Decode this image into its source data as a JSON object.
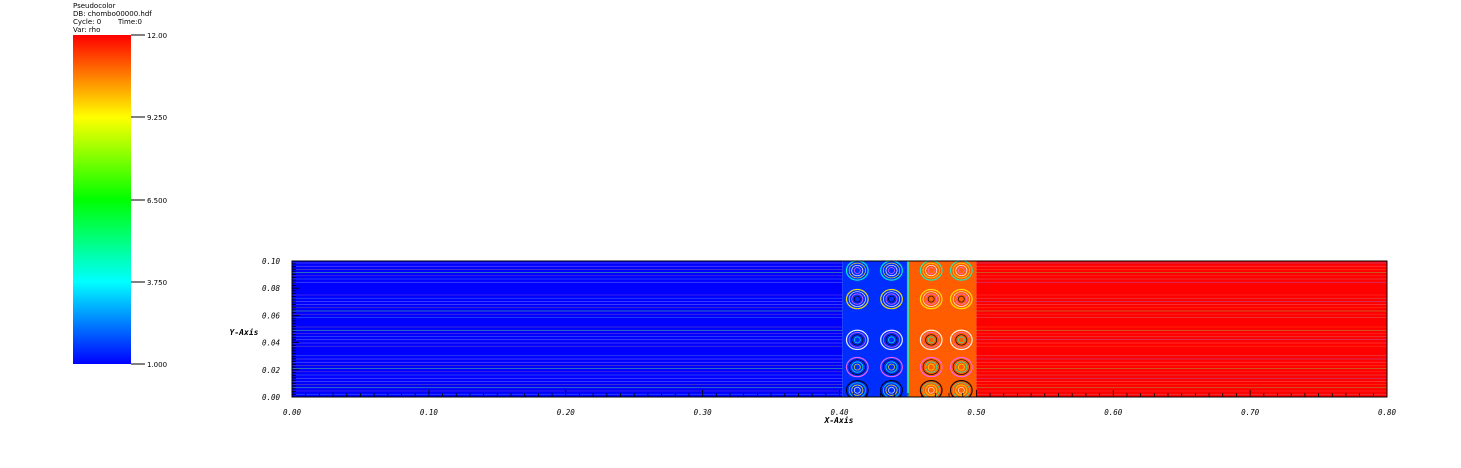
{
  "header": {
    "plot_type": "Pseudocolor",
    "db": "DB: chombo00000.hdf",
    "cycle": "Cycle: 0",
    "time": "Time:0",
    "var": "Var: rho"
  },
  "legend": {
    "min": 1.0,
    "max": 12.0,
    "tick_labels": [
      "12.00",
      "9.250",
      "6.500",
      "3.750",
      "1.000"
    ],
    "colormap": [
      "#0000ff",
      "#00ffff",
      "#00ff00",
      "#ffff00",
      "#ff0000"
    ]
  },
  "chart_data": {
    "type": "heatmap",
    "title": "",
    "xlabel": "X-Axis",
    "ylabel": "Y-Axis",
    "xlim": [
      0.0,
      0.8
    ],
    "ylim": [
      0.0,
      0.1
    ],
    "x_ticks": [
      "0.00",
      "0.10",
      "0.20",
      "0.30",
      "0.40",
      "0.50",
      "0.60",
      "0.70",
      "0.80"
    ],
    "y_ticks": [
      "0.00",
      "0.02",
      "0.04",
      "0.06",
      "0.08",
      "0.10"
    ],
    "regions": [
      {
        "x": [
          0.0,
          0.402
        ],
        "value": 1.0
      },
      {
        "x": [
          0.402,
          0.45
        ],
        "value": 1.5
      },
      {
        "x": [
          0.45,
          0.5
        ],
        "value": 11.0
      },
      {
        "x": [
          0.5,
          0.8
        ],
        "value": 12.0
      }
    ],
    "interface_x": 0.45,
    "vortex_columns_x": [
      0.413,
      0.438,
      0.467,
      0.489
    ],
    "vortex_rows_y": [
      0.005,
      0.022,
      0.042,
      0.072,
      0.093
    ]
  }
}
